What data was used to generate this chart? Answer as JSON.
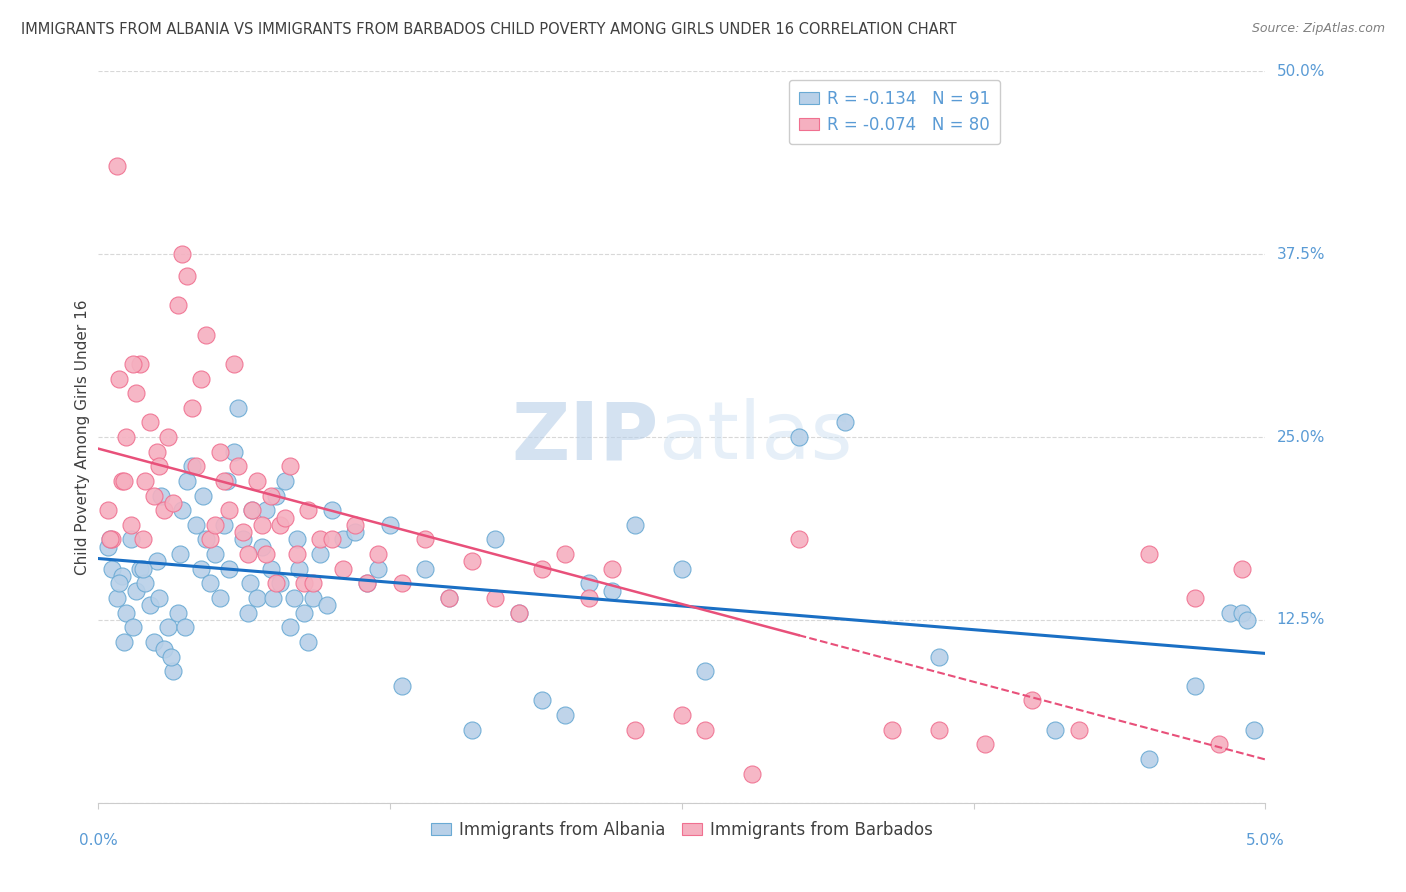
{
  "title": "IMMIGRANTS FROM ALBANIA VS IMMIGRANTS FROM BARBADOS CHILD POVERTY AMONG GIRLS UNDER 16 CORRELATION CHART",
  "source": "Source: ZipAtlas.com",
  "ylabel": "Child Poverty Among Girls Under 16",
  "xlim": [
    0.0,
    5.0
  ],
  "ylim": [
    0.0,
    50.0
  ],
  "yticks": [
    0.0,
    12.5,
    25.0,
    37.5,
    50.0
  ],
  "albania_R": -0.134,
  "albania_N": 91,
  "barbados_R": -0.074,
  "barbados_N": 80,
  "albania_color": "#b8d0e8",
  "barbados_color": "#f5b0c0",
  "albania_edge_color": "#6aaad4",
  "barbados_edge_color": "#f07090",
  "albania_line_color": "#1a6fc4",
  "barbados_line_color": "#e8507a",
  "albania_x": [
    0.04,
    0.06,
    0.08,
    0.1,
    0.12,
    0.14,
    0.15,
    0.16,
    0.18,
    0.2,
    0.22,
    0.24,
    0.25,
    0.26,
    0.28,
    0.3,
    0.32,
    0.34,
    0.35,
    0.36,
    0.38,
    0.4,
    0.42,
    0.44,
    0.45,
    0.46,
    0.48,
    0.5,
    0.52,
    0.54,
    0.55,
    0.56,
    0.58,
    0.6,
    0.62,
    0.64,
    0.65,
    0.66,
    0.68,
    0.7,
    0.72,
    0.74,
    0.75,
    0.76,
    0.78,
    0.8,
    0.82,
    0.84,
    0.85,
    0.86,
    0.88,
    0.9,
    0.92,
    0.95,
    0.98,
    1.0,
    1.05,
    1.1,
    1.15,
    1.2,
    1.25,
    1.3,
    1.4,
    1.5,
    1.6,
    1.7,
    1.8,
    1.9,
    2.0,
    2.1,
    2.2,
    2.3,
    2.5,
    2.6,
    3.0,
    3.2,
    3.6,
    4.1,
    4.5,
    4.7,
    4.85,
    4.9,
    4.92,
    4.95,
    0.05,
    0.09,
    0.11,
    0.19,
    0.27,
    0.31,
    0.37
  ],
  "albania_y": [
    17.5,
    16.0,
    14.0,
    15.5,
    13.0,
    18.0,
    12.0,
    14.5,
    16.0,
    15.0,
    13.5,
    11.0,
    16.5,
    14.0,
    10.5,
    12.0,
    9.0,
    13.0,
    17.0,
    20.0,
    22.0,
    23.0,
    19.0,
    16.0,
    21.0,
    18.0,
    15.0,
    17.0,
    14.0,
    19.0,
    22.0,
    16.0,
    24.0,
    27.0,
    18.0,
    13.0,
    15.0,
    20.0,
    14.0,
    17.5,
    20.0,
    16.0,
    14.0,
    21.0,
    15.0,
    22.0,
    12.0,
    14.0,
    18.0,
    16.0,
    13.0,
    11.0,
    14.0,
    17.0,
    13.5,
    20.0,
    18.0,
    18.5,
    15.0,
    16.0,
    19.0,
    8.0,
    16.0,
    14.0,
    5.0,
    18.0,
    13.0,
    7.0,
    6.0,
    15.0,
    14.5,
    19.0,
    16.0,
    9.0,
    25.0,
    26.0,
    10.0,
    5.0,
    3.0,
    8.0,
    13.0,
    13.0,
    12.5,
    5.0,
    18.0,
    15.0,
    11.0,
    16.0,
    21.0,
    10.0,
    12.0
  ],
  "barbados_x": [
    0.04,
    0.06,
    0.08,
    0.1,
    0.12,
    0.14,
    0.16,
    0.18,
    0.2,
    0.22,
    0.24,
    0.25,
    0.26,
    0.28,
    0.3,
    0.32,
    0.34,
    0.36,
    0.38,
    0.4,
    0.42,
    0.44,
    0.46,
    0.48,
    0.5,
    0.52,
    0.54,
    0.56,
    0.58,
    0.6,
    0.62,
    0.64,
    0.66,
    0.68,
    0.7,
    0.72,
    0.74,
    0.76,
    0.78,
    0.8,
    0.82,
    0.85,
    0.88,
    0.9,
    0.92,
    0.95,
    1.0,
    1.05,
    1.1,
    1.15,
    1.2,
    1.3,
    1.4,
    1.5,
    1.6,
    1.7,
    1.8,
    1.9,
    2.0,
    2.1,
    2.2,
    2.3,
    2.5,
    2.6,
    2.8,
    3.0,
    3.4,
    3.6,
    4.0,
    4.5,
    4.7,
    4.8,
    4.9,
    3.8,
    4.2,
    0.05,
    0.09,
    0.11,
    0.15,
    0.19
  ],
  "barbados_y": [
    20.0,
    18.0,
    43.5,
    22.0,
    25.0,
    19.0,
    28.0,
    30.0,
    22.0,
    26.0,
    21.0,
    24.0,
    23.0,
    20.0,
    25.0,
    20.5,
    34.0,
    37.5,
    36.0,
    27.0,
    23.0,
    29.0,
    32.0,
    18.0,
    19.0,
    24.0,
    22.0,
    20.0,
    30.0,
    23.0,
    18.5,
    17.0,
    20.0,
    22.0,
    19.0,
    17.0,
    21.0,
    15.0,
    19.0,
    19.5,
    23.0,
    17.0,
    15.0,
    20.0,
    15.0,
    18.0,
    18.0,
    16.0,
    19.0,
    15.0,
    17.0,
    15.0,
    18.0,
    14.0,
    16.5,
    14.0,
    13.0,
    16.0,
    17.0,
    14.0,
    16.0,
    5.0,
    6.0,
    5.0,
    2.0,
    18.0,
    5.0,
    5.0,
    7.0,
    17.0,
    14.0,
    4.0,
    16.0,
    4.0,
    5.0,
    18.0,
    29.0,
    22.0,
    30.0,
    18.0
  ],
  "watermark_zip": "ZIP",
  "watermark_atlas": "atlas",
  "background_color": "#ffffff",
  "grid_color": "#d8d8d8",
  "title_color": "#404040",
  "tick_label_color": "#5a9bd5",
  "source_color": "#808080"
}
